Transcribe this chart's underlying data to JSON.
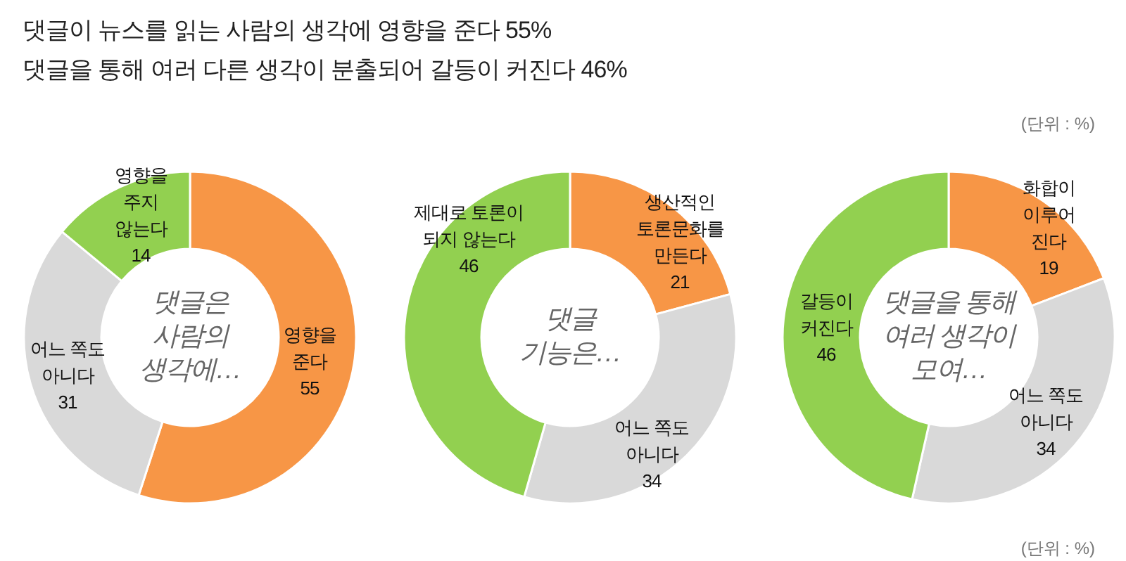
{
  "chart_data": [
    {
      "type": "donut",
      "title": "댓글이 뉴스를 읽는 사람의 생각에 영향을 준다 55%",
      "subtitle": "댓글을 통해 여러 다른 생각이 분출되어 갈등이 커진다 46%",
      "annotations": [
        "댓글은 사람의 생각에…"
      ],
      "categories": [
        "영향을 준다",
        "어느 쪽도 아니다",
        "영향을 주지 않는다"
      ],
      "values": [
        55,
        31,
        14
      ],
      "colors": [
        "#f79646",
        "#d9d9d9",
        "#92d050"
      ],
      "data_labels": true
    },
    {
      "type": "donut",
      "annotations": [
        "댓글 기능은…"
      ],
      "categories": [
        "생산적인 토론문화를 만든다",
        "어느 쪽도 아니다",
        "제대로 토론이 되지 않는다"
      ],
      "values": [
        21,
        34,
        46
      ],
      "colors": [
        "#f79646",
        "#d9d9d9",
        "#92d050"
      ],
      "data_labels": true
    },
    {
      "type": "donut",
      "annotations": [
        "댓글을 통해 여러 생각이 모여…",
        "(단위 : %)",
        "(단위 : %)"
      ],
      "categories": [
        "화합이 이루어 진다",
        "어느 쪽도 아니다",
        "갈등이 커진다"
      ],
      "values": [
        19,
        34,
        46
      ],
      "colors": [
        "#f79646",
        "#d9d9d9",
        "#92d050"
      ],
      "data_labels": true
    }
  ]
}
